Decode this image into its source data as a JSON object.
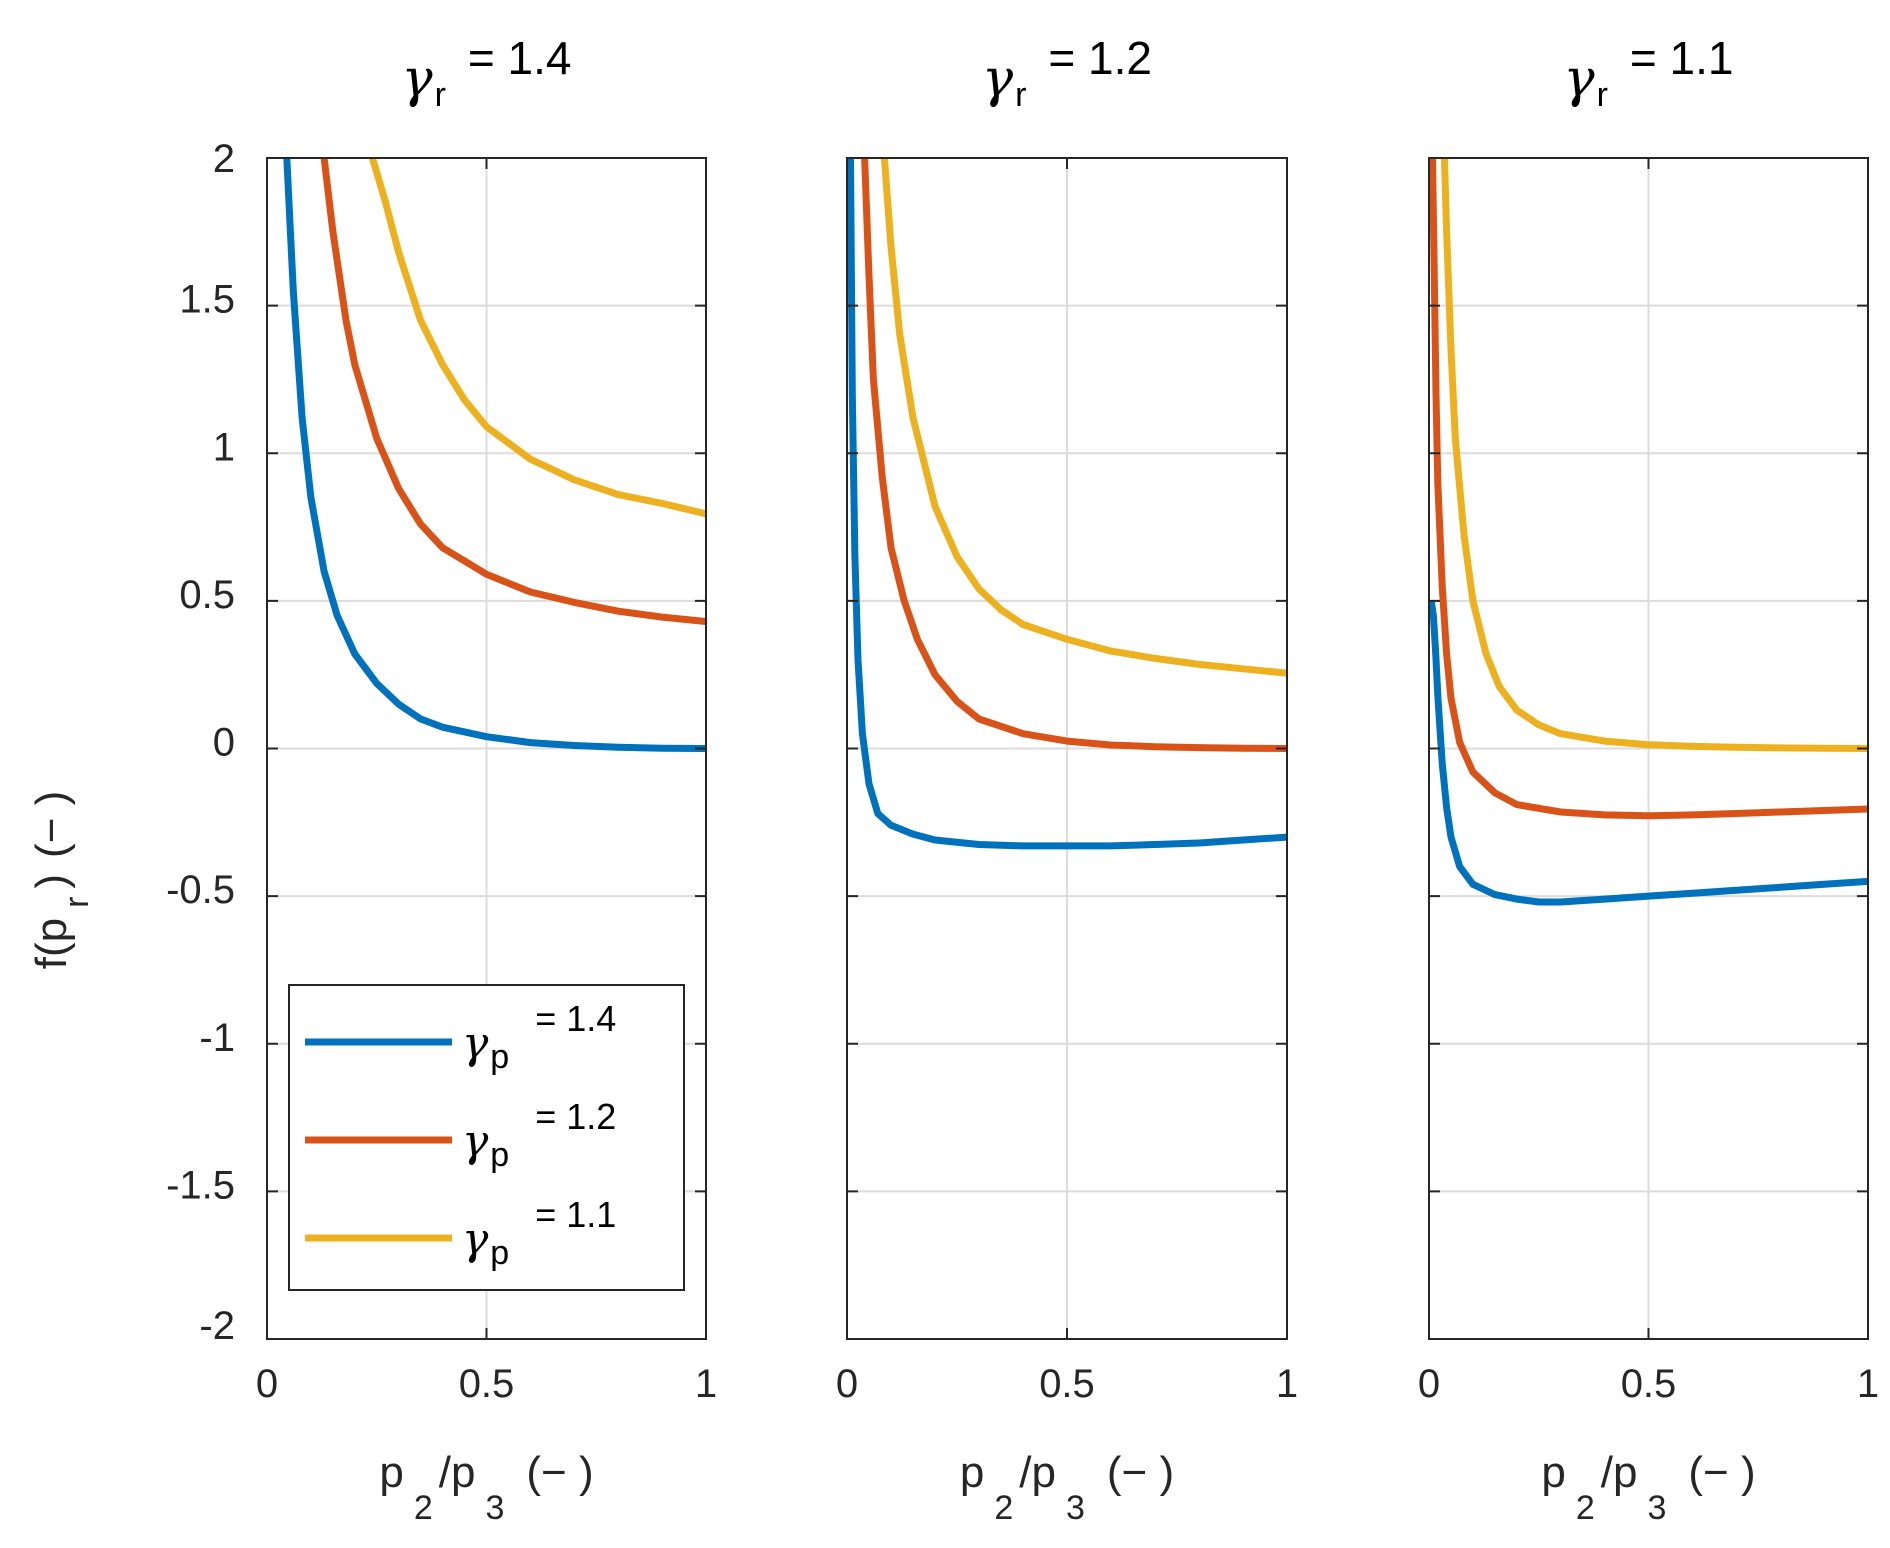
{
  "chart_data": {
    "type": "line",
    "layout": "1x3 subplots",
    "x_label": {
      "main": "p",
      "sub1": "2",
      "mid": "/p",
      "sub2": "3",
      "unit": "(− )"
    },
    "y_label": {
      "main": "f(p",
      "sub": "r",
      "end": ")",
      "unit": "(− )"
    },
    "xlim": [
      0,
      1
    ],
    "ylim": [
      -2,
      2
    ],
    "x_ticks": [
      "0",
      "0.5",
      "1"
    ],
    "y_ticks": [
      "-2",
      "-1.5",
      "-1",
      "-0.5",
      "0",
      "0.5",
      "1",
      "1.5",
      "2"
    ],
    "grid": true,
    "colors": {
      "gamma_p_1.4": "#0072BD",
      "gamma_p_1.2": "#D95319",
      "gamma_p_1.1": "#EDB120"
    },
    "legend": {
      "placement": "lower-left of first panel",
      "entries": [
        {
          "symbol": "γ",
          "sub": "p",
          "text": "= 1.4",
          "color": "#0072BD"
        },
        {
          "symbol": "γ",
          "sub": "p",
          "text": "= 1.2",
          "color": "#D95319"
        },
        {
          "symbol": "γ",
          "sub": "p",
          "text": "= 1.1",
          "color": "#EDB120"
        }
      ]
    },
    "panels": [
      {
        "title": {
          "symbol": "γ",
          "sub": "r",
          "text": "= 1.4"
        },
        "series": [
          {
            "name": "γp = 1.4",
            "color": "#0072BD",
            "points": [
              [
                0.045,
                2.0
              ],
              [
                0.06,
                1.55
              ],
              [
                0.08,
                1.12
              ],
              [
                0.1,
                0.85
              ],
              [
                0.13,
                0.6
              ],
              [
                0.16,
                0.45
              ],
              [
                0.2,
                0.32
              ],
              [
                0.25,
                0.22
              ],
              [
                0.3,
                0.15
              ],
              [
                0.35,
                0.1
              ],
              [
                0.4,
                0.072
              ],
              [
                0.5,
                0.04
              ],
              [
                0.6,
                0.02
              ],
              [
                0.7,
                0.01
              ],
              [
                0.8,
                0.004
              ],
              [
                0.9,
                0.001
              ],
              [
                1.0,
                0.0
              ]
            ]
          },
          {
            "name": "γp = 1.2",
            "color": "#D95319",
            "points": [
              [
                0.13,
                2.0
              ],
              [
                0.15,
                1.75
              ],
              [
                0.18,
                1.45
              ],
              [
                0.2,
                1.3
              ],
              [
                0.25,
                1.05
              ],
              [
                0.3,
                0.88
              ],
              [
                0.35,
                0.76
              ],
              [
                0.4,
                0.68
              ],
              [
                0.5,
                0.59
              ],
              [
                0.6,
                0.53
              ],
              [
                0.7,
                0.495
              ],
              [
                0.8,
                0.465
              ],
              [
                0.9,
                0.445
              ],
              [
                1.0,
                0.43
              ]
            ]
          },
          {
            "name": "γp = 1.1",
            "color": "#EDB120",
            "points": [
              [
                0.24,
                2.0
              ],
              [
                0.27,
                1.85
              ],
              [
                0.3,
                1.68
              ],
              [
                0.35,
                1.45
              ],
              [
                0.4,
                1.3
              ],
              [
                0.45,
                1.18
              ],
              [
                0.5,
                1.09
              ],
              [
                0.6,
                0.98
              ],
              [
                0.7,
                0.91
              ],
              [
                0.8,
                0.86
              ],
              [
                0.9,
                0.83
              ],
              [
                1.0,
                0.795
              ]
            ]
          }
        ]
      },
      {
        "title": {
          "symbol": "γ",
          "sub": "r",
          "text": "= 1.2"
        },
        "series": [
          {
            "name": "γp = 1.4",
            "color": "#0072BD",
            "points": [
              [
                0.008,
                2.0
              ],
              [
                0.012,
                1.2
              ],
              [
                0.018,
                0.65
              ],
              [
                0.025,
                0.3
              ],
              [
                0.035,
                0.05
              ],
              [
                0.05,
                -0.12
              ],
              [
                0.07,
                -0.22
              ],
              [
                0.1,
                -0.26
              ],
              [
                0.15,
                -0.29
              ],
              [
                0.2,
                -0.31
              ],
              [
                0.3,
                -0.325
              ],
              [
                0.4,
                -0.33
              ],
              [
                0.5,
                -0.33
              ],
              [
                0.6,
                -0.33
              ],
              [
                0.7,
                -0.325
              ],
              [
                0.8,
                -0.32
              ],
              [
                0.9,
                -0.31
              ],
              [
                1.0,
                -0.3
              ]
            ]
          },
          {
            "name": "γp = 1.2",
            "color": "#D95319",
            "points": [
              [
                0.04,
                2.0
              ],
              [
                0.05,
                1.6
              ],
              [
                0.06,
                1.25
              ],
              [
                0.08,
                0.92
              ],
              [
                0.1,
                0.68
              ],
              [
                0.13,
                0.5
              ],
              [
                0.16,
                0.37
              ],
              [
                0.2,
                0.25
              ],
              [
                0.25,
                0.16
              ],
              [
                0.3,
                0.1
              ],
              [
                0.4,
                0.05
              ],
              [
                0.5,
                0.025
              ],
              [
                0.6,
                0.012
              ],
              [
                0.7,
                0.006
              ],
              [
                0.8,
                0.003
              ],
              [
                0.9,
                0.001
              ],
              [
                1.0,
                0.0
              ]
            ]
          },
          {
            "name": "γp = 1.1",
            "color": "#EDB120",
            "points": [
              [
                0.085,
                2.0
              ],
              [
                0.1,
                1.7
              ],
              [
                0.12,
                1.4
              ],
              [
                0.15,
                1.12
              ],
              [
                0.2,
                0.82
              ],
              [
                0.25,
                0.65
              ],
              [
                0.3,
                0.54
              ],
              [
                0.35,
                0.47
              ],
              [
                0.4,
                0.42
              ],
              [
                0.5,
                0.37
              ],
              [
                0.6,
                0.33
              ],
              [
                0.7,
                0.305
              ],
              [
                0.8,
                0.285
              ],
              [
                0.9,
                0.27
              ],
              [
                1.0,
                0.255
              ]
            ]
          }
        ]
      },
      {
        "title": {
          "symbol": "γ",
          "sub": "r",
          "text": "= 1.1"
        },
        "series": [
          {
            "name": "γp = 1.4",
            "color": "#0072BD",
            "points": [
              [
                0.005,
                0.5
              ],
              [
                0.01,
                0.45
              ],
              [
                0.015,
                0.33
              ],
              [
                0.02,
                0.18
              ],
              [
                0.03,
                -0.05
              ],
              [
                0.04,
                -0.2
              ],
              [
                0.05,
                -0.3
              ],
              [
                0.07,
                -0.4
              ],
              [
                0.1,
                -0.46
              ],
              [
                0.15,
                -0.495
              ],
              [
                0.2,
                -0.51
              ],
              [
                0.25,
                -0.52
              ],
              [
                0.3,
                -0.52
              ],
              [
                0.4,
                -0.51
              ],
              [
                0.5,
                -0.5
              ],
              [
                0.6,
                -0.49
              ],
              [
                0.7,
                -0.48
              ],
              [
                0.8,
                -0.47
              ],
              [
                0.9,
                -0.46
              ],
              [
                1.0,
                -0.45
              ]
            ]
          },
          {
            "name": "γp = 1.2",
            "color": "#D95319",
            "points": [
              [
                0.008,
                2.0
              ],
              [
                0.012,
                1.6
              ],
              [
                0.016,
                1.2
              ],
              [
                0.02,
                0.9
              ],
              [
                0.03,
                0.55
              ],
              [
                0.04,
                0.32
              ],
              [
                0.05,
                0.17
              ],
              [
                0.07,
                0.02
              ],
              [
                0.1,
                -0.08
              ],
              [
                0.15,
                -0.15
              ],
              [
                0.2,
                -0.19
              ],
              [
                0.3,
                -0.215
              ],
              [
                0.4,
                -0.225
              ],
              [
                0.5,
                -0.228
              ],
              [
                0.6,
                -0.225
              ],
              [
                0.7,
                -0.22
              ],
              [
                0.8,
                -0.215
              ],
              [
                0.9,
                -0.21
              ],
              [
                1.0,
                -0.205
              ]
            ]
          },
          {
            "name": "γp = 1.1",
            "color": "#EDB120",
            "points": [
              [
                0.035,
                2.0
              ],
              [
                0.04,
                1.75
              ],
              [
                0.05,
                1.35
              ],
              [
                0.06,
                1.05
              ],
              [
                0.08,
                0.72
              ],
              [
                0.1,
                0.5
              ],
              [
                0.13,
                0.32
              ],
              [
                0.16,
                0.21
              ],
              [
                0.2,
                0.13
              ],
              [
                0.25,
                0.08
              ],
              [
                0.3,
                0.05
              ],
              [
                0.4,
                0.025
              ],
              [
                0.5,
                0.013
              ],
              [
                0.6,
                0.007
              ],
              [
                0.7,
                0.004
              ],
              [
                0.8,
                0.002
              ],
              [
                0.9,
                0.001
              ],
              [
                1.0,
                0.0
              ]
            ]
          }
        ]
      }
    ]
  }
}
